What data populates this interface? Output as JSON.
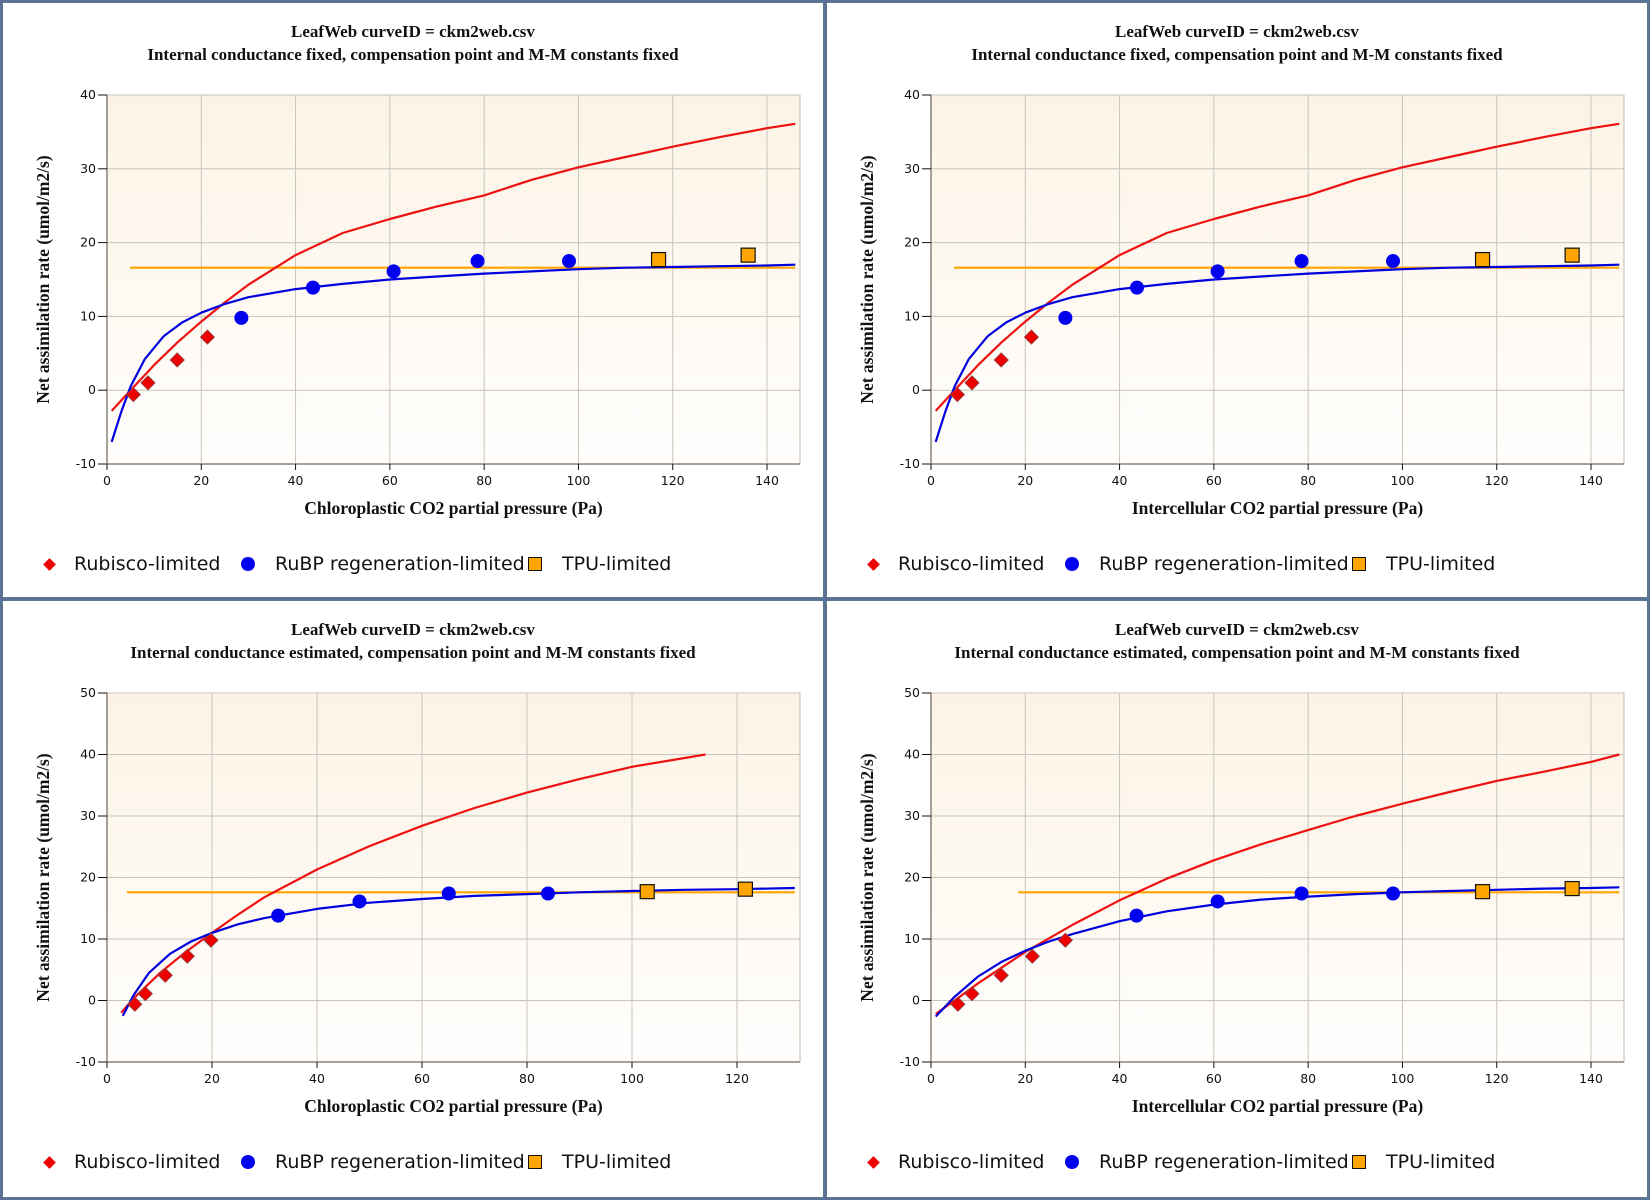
{
  "legend": [
    {
      "label": "Rubisco-limited",
      "symbol": "diamond",
      "color": "#e00000"
    },
    {
      "label": "RuBP regeneration-limited",
      "symbol": "circle",
      "color": "#0000ee"
    },
    {
      "label": "TPU-limited",
      "symbol": "square",
      "color": "#ffa500"
    }
  ],
  "colors": {
    "rubisco": "#ee1111",
    "rubp": "#0000dd",
    "tpu": "#ffa500",
    "plot_bg_top": "#fcf3e5",
    "plot_bg_bottom": "#fffefd",
    "grid": "#c8c4bc",
    "frame": "#5b7393"
  },
  "chart_data": [
    {
      "type": "scatter",
      "title": "LeafWeb curveID = ckm2web.csv",
      "subtitle": "Internal conductance fixed, compensation point and M-M constants fixed",
      "xlabel": "Chloroplastic CO2 partial pressure (Pa)",
      "ylabel": "Net assimilation rate (umol/m2/s)",
      "xlim": [
        0,
        147
      ],
      "ylim": [
        -10,
        40
      ],
      "xticks": [
        0,
        20,
        40,
        60,
        80,
        100,
        120,
        140
      ],
      "yticks": [
        -10,
        0,
        10,
        20,
        30,
        40
      ],
      "grid": true,
      "legend_position": "bottom",
      "series": [
        {
          "name": "Rubisco-limited",
          "kind": "points",
          "symbol": "diamond",
          "x": [
            5.6,
            8.7,
            14.9,
            21.3
          ],
          "y": [
            -0.6,
            1.0,
            4.1,
            7.2
          ]
        },
        {
          "name": "RuBP regeneration-limited",
          "kind": "points",
          "symbol": "circle",
          "x": [
            28.5,
            43.7,
            60.8,
            78.6,
            98.0
          ],
          "y": [
            9.8,
            13.9,
            16.1,
            17.5,
            17.5
          ]
        },
        {
          "name": "TPU-limited",
          "kind": "points",
          "symbol": "square",
          "x": [
            117.0,
            136.0
          ],
          "y": [
            17.7,
            18.3
          ]
        },
        {
          "name": "Rubisco-limited fit",
          "kind": "line",
          "color": "rubisco",
          "x": [
            1,
            5,
            10,
            15,
            20,
            25,
            30,
            40,
            50,
            60,
            70,
            80,
            90,
            100,
            110,
            120,
            130,
            140,
            146
          ],
          "y": [
            -2.8,
            0.0,
            3.4,
            6.5,
            9.3,
            11.9,
            14.3,
            18.3,
            21.3,
            23.2,
            24.9,
            26.4,
            28.5,
            30.2,
            31.6,
            33.0,
            34.3,
            35.5,
            36.1
          ]
        },
        {
          "name": "RuBP regeneration-limited fit",
          "kind": "line",
          "color": "rubp",
          "x": [
            1,
            3,
            5,
            8,
            12,
            16,
            20,
            25,
            30,
            40,
            50,
            60,
            70,
            80,
            90,
            100,
            110,
            120,
            130,
            140,
            146
          ],
          "y": [
            -7.0,
            -3.0,
            0.5,
            4.2,
            7.3,
            9.2,
            10.5,
            11.7,
            12.6,
            13.7,
            14.4,
            15.0,
            15.4,
            15.8,
            16.1,
            16.4,
            16.6,
            16.7,
            16.8,
            16.9,
            17.0
          ]
        },
        {
          "name": "TPU-limited fit",
          "kind": "line",
          "color": "tpu",
          "x": [
            4.9,
            146
          ],
          "y": [
            16.6,
            16.6
          ]
        }
      ]
    },
    {
      "type": "scatter",
      "title": "LeafWeb curveID = ckm2web.csv",
      "subtitle": "Internal conductance fixed, compensation point and M-M constants fixed",
      "xlabel": "Intercellular CO2 partial pressure (Pa)",
      "ylabel": "Net assimilation rate (umol/m2/s)",
      "xlim": [
        0,
        147
      ],
      "ylim": [
        -10,
        40
      ],
      "xticks": [
        0,
        20,
        40,
        60,
        80,
        100,
        120,
        140
      ],
      "yticks": [
        -10,
        0,
        10,
        20,
        30,
        40
      ],
      "grid": true,
      "legend_position": "bottom",
      "series": [
        {
          "name": "Rubisco-limited",
          "kind": "points",
          "symbol": "diamond",
          "x": [
            5.6,
            8.7,
            14.9,
            21.3
          ],
          "y": [
            -0.6,
            1.0,
            4.1,
            7.2
          ]
        },
        {
          "name": "RuBP regeneration-limited",
          "kind": "points",
          "symbol": "circle",
          "x": [
            28.5,
            43.7,
            60.8,
            78.6,
            98.0
          ],
          "y": [
            9.8,
            13.9,
            16.1,
            17.5,
            17.5
          ]
        },
        {
          "name": "TPU-limited",
          "kind": "points",
          "symbol": "square",
          "x": [
            117.0,
            136.0
          ],
          "y": [
            17.7,
            18.3
          ]
        },
        {
          "name": "Rubisco-limited fit",
          "kind": "line",
          "color": "rubisco",
          "x": [
            1,
            5,
            10,
            15,
            20,
            25,
            30,
            40,
            50,
            60,
            70,
            80,
            90,
            100,
            110,
            120,
            130,
            140,
            146
          ],
          "y": [
            -2.8,
            0.0,
            3.4,
            6.5,
            9.3,
            11.9,
            14.3,
            18.3,
            21.3,
            23.2,
            24.9,
            26.4,
            28.5,
            30.2,
            31.6,
            33.0,
            34.3,
            35.5,
            36.1
          ]
        },
        {
          "name": "RuBP regeneration-limited fit",
          "kind": "line",
          "color": "rubp",
          "x": [
            1,
            3,
            5,
            8,
            12,
            16,
            20,
            25,
            30,
            40,
            50,
            60,
            70,
            80,
            90,
            100,
            110,
            120,
            130,
            140,
            146
          ],
          "y": [
            -7.0,
            -3.0,
            0.5,
            4.2,
            7.3,
            9.2,
            10.5,
            11.7,
            12.6,
            13.7,
            14.4,
            15.0,
            15.4,
            15.8,
            16.1,
            16.4,
            16.6,
            16.7,
            16.8,
            16.9,
            17.0
          ]
        },
        {
          "name": "TPU-limited fit",
          "kind": "line",
          "color": "tpu",
          "x": [
            4.9,
            146
          ],
          "y": [
            16.6,
            16.6
          ]
        }
      ]
    },
    {
      "type": "scatter",
      "title": "LeafWeb curveID = ckm2web.csv",
      "subtitle": "Internal conductance estimated, compensation point and M-M constants fixed",
      "xlabel": "Chloroplastic CO2 partial pressure (Pa)",
      "ylabel": "Net assimilation rate (umol/m2/s)",
      "xlim": [
        0,
        132
      ],
      "ylim": [
        -10,
        50
      ],
      "xticks": [
        0,
        20,
        40,
        60,
        80,
        100,
        120
      ],
      "yticks": [
        -10,
        0,
        10,
        20,
        30,
        40,
        50
      ],
      "grid": true,
      "legend_position": "bottom",
      "series": [
        {
          "name": "Rubisco-limited",
          "kind": "points",
          "symbol": "diamond",
          "x": [
            5.3,
            7.3,
            11.1,
            15.3,
            19.8
          ],
          "y": [
            -0.6,
            1.1,
            4.1,
            7.2,
            9.8
          ]
        },
        {
          "name": "RuBP regeneration-limited",
          "kind": "points",
          "symbol": "circle",
          "x": [
            32.6,
            48.1,
            65.1,
            84.0
          ],
          "y": [
            13.8,
            16.1,
            17.4,
            17.4
          ]
        },
        {
          "name": "TPU-limited",
          "kind": "points",
          "symbol": "square",
          "x": [
            102.9,
            121.6
          ],
          "y": [
            17.7,
            18.1
          ]
        },
        {
          "name": "Rubisco-limited fit",
          "kind": "line",
          "color": "rubisco",
          "x": [
            2.7,
            5,
            10,
            15,
            20,
            25,
            30,
            40,
            50,
            60,
            70,
            80,
            90,
            100,
            114
          ],
          "y": [
            -2.0,
            0.3,
            4.4,
            7.9,
            11.0,
            14.0,
            16.8,
            21.3,
            25.1,
            28.4,
            31.3,
            33.8,
            36.0,
            38.0,
            40.0
          ]
        },
        {
          "name": "RuBP regeneration-limited fit",
          "kind": "line",
          "color": "rubp",
          "x": [
            3,
            5,
            8,
            12,
            16,
            20,
            25,
            30,
            40,
            50,
            60,
            70,
            80,
            90,
            100,
            110,
            120,
            131
          ],
          "y": [
            -2.5,
            0.8,
            4.5,
            7.6,
            9.6,
            11.0,
            12.4,
            13.4,
            14.9,
            15.9,
            16.5,
            17.0,
            17.3,
            17.6,
            17.8,
            18.0,
            18.1,
            18.3
          ]
        },
        {
          "name": "TPU-limited fit",
          "kind": "line",
          "color": "tpu",
          "x": [
            3.8,
            131
          ],
          "y": [
            17.6,
            17.6
          ]
        }
      ]
    },
    {
      "type": "scatter",
      "title": "LeafWeb curveID = ckm2web.csv",
      "subtitle": "Internal conductance estimated, compensation point and M-M constants fixed",
      "xlabel": "Intercellular CO2 partial pressure (Pa)",
      "ylabel": "Net assimilation rate (umol/m2/s)",
      "xlim": [
        0,
        147
      ],
      "ylim": [
        -10,
        50
      ],
      "xticks": [
        0,
        20,
        40,
        60,
        80,
        100,
        120,
        140
      ],
      "yticks": [
        -10,
        0,
        10,
        20,
        30,
        40,
        50
      ],
      "grid": true,
      "legend_position": "bottom",
      "series": [
        {
          "name": "Rubisco-limited",
          "kind": "points",
          "symbol": "diamond",
          "x": [
            5.7,
            8.7,
            14.9,
            21.5,
            28.5
          ],
          "y": [
            -0.6,
            1.1,
            4.1,
            7.2,
            9.8
          ]
        },
        {
          "name": "RuBP regeneration-limited",
          "kind": "points",
          "symbol": "circle",
          "x": [
            43.6,
            60.8,
            78.6,
            98.0
          ],
          "y": [
            13.8,
            16.1,
            17.4,
            17.4
          ]
        },
        {
          "name": "TPU-limited",
          "kind": "points",
          "symbol": "square",
          "x": [
            117.0,
            136.0
          ],
          "y": [
            17.7,
            18.2
          ]
        },
        {
          "name": "Rubisco-limited fit",
          "kind": "line",
          "color": "rubisco",
          "x": [
            1,
            5,
            10,
            20,
            30,
            40,
            50,
            60,
            70,
            80,
            90,
            100,
            110,
            120,
            130,
            140,
            146
          ],
          "y": [
            -2.2,
            0.0,
            2.8,
            7.9,
            12.3,
            16.3,
            19.8,
            22.8,
            25.4,
            27.7,
            30.0,
            32.0,
            33.9,
            35.7,
            37.2,
            38.8,
            40.0
          ]
        },
        {
          "name": "RuBP regeneration-limited fit",
          "kind": "line",
          "color": "rubp",
          "x": [
            1,
            5,
            10,
            15,
            20,
            25,
            30,
            40,
            50,
            60,
            70,
            80,
            90,
            100,
            110,
            120,
            130,
            140,
            146
          ],
          "y": [
            -2.6,
            0.6,
            3.9,
            6.3,
            8.1,
            9.6,
            10.8,
            12.9,
            14.5,
            15.6,
            16.4,
            16.9,
            17.3,
            17.6,
            17.8,
            18.0,
            18.2,
            18.3,
            18.4
          ]
        },
        {
          "name": "TPU-limited fit",
          "kind": "line",
          "color": "tpu",
          "x": [
            18.5,
            146
          ],
          "y": [
            17.6,
            17.6
          ]
        }
      ]
    }
  ]
}
